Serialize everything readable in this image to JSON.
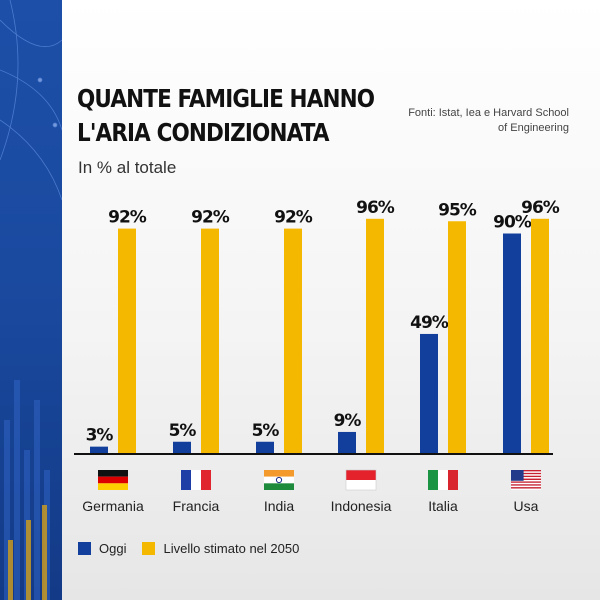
{
  "title": "Quante famiglie hanno l'aria condizionata",
  "subtitle": "In % al totale",
  "source": "Fonti: Istat, Iea e Harvard School of Engineering",
  "colors": {
    "oggi": "#123e9c",
    "stimato": "#f5b800"
  },
  "chart_data": {
    "type": "bar",
    "categories": [
      "Germania",
      "Francia",
      "India",
      "Indonesia",
      "Italia",
      "Usa"
    ],
    "flags": [
      "flag-germany-icon",
      "flag-france-icon",
      "flag-india-icon",
      "flag-indonesia-icon",
      "flag-italy-icon",
      "flag-usa-icon"
    ],
    "series": [
      {
        "name": "Oggi",
        "values": [
          3,
          5,
          5,
          9,
          49,
          90
        ],
        "labels": [
          "3%",
          "5%",
          "5%",
          "9%",
          "49%",
          "90%"
        ]
      },
      {
        "name": "Livello stimato nel 2050",
        "values": [
          92,
          92,
          92,
          96,
          95,
          96
        ],
        "labels": [
          "92%",
          "92%",
          "92%",
          "96%",
          "95%",
          "96%"
        ]
      }
    ],
    "ylim": [
      0,
      100
    ],
    "grid": false,
    "legend": "bottom-left"
  }
}
